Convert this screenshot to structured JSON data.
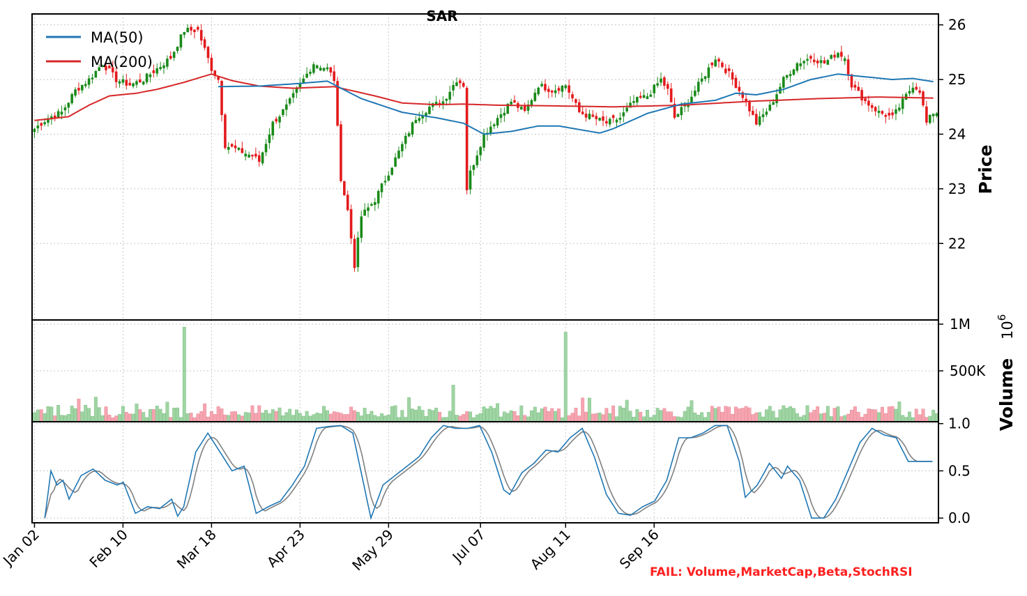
{
  "chart_data": {
    "type": "candlestick",
    "title": "SAR",
    "x_ticks": [
      "Jan 02",
      "Feb 10",
      "Mar 18",
      "Apr 23",
      "May 29",
      "Jul 07",
      "Aug 11",
      "Sep 16"
    ],
    "colors": {
      "up": "#1a8a1a",
      "down": "#e31a1c",
      "ma50": "#1f77b4",
      "ma200": "#d62728",
      "vol_up": "#9fd4a3",
      "vol_down": "#f6a5b0",
      "stoch_k": "#1f77b4",
      "stoch_d": "#808080",
      "fail": "#ff2020"
    },
    "price_panel": {
      "ylabel": "Price",
      "ylim": [
        20.6,
        26.2
      ],
      "yticks": [
        "22",
        "23",
        "24",
        "25",
        "26"
      ],
      "ytick_values": [
        22,
        23,
        24,
        25,
        26
      ],
      "legend": [
        {
          "label": "MA(50)",
          "color": "#1f77b4"
        },
        {
          "label": "MA(200)",
          "color": "#d62728"
        }
      ],
      "legend_position": "top-left",
      "grid": true,
      "close_anchors": [
        [
          0,
          24.1
        ],
        [
          4,
          24.3
        ],
        [
          8,
          24.4
        ],
        [
          12,
          24.8
        ],
        [
          16,
          25.0
        ],
        [
          20,
          25.3
        ],
        [
          24,
          25.0
        ],
        [
          28,
          24.9
        ],
        [
          32,
          25.0
        ],
        [
          36,
          25.2
        ],
        [
          40,
          25.4
        ],
        [
          44,
          25.9
        ],
        [
          48,
          25.9
        ],
        [
          52,
          25.2
        ],
        [
          54,
          25.0
        ],
        [
          56,
          23.8
        ],
        [
          60,
          23.7
        ],
        [
          64,
          23.6
        ],
        [
          66,
          23.5
        ],
        [
          70,
          24.2
        ],
        [
          74,
          24.5
        ],
        [
          78,
          24.9
        ],
        [
          82,
          25.3
        ],
        [
          86,
          25.2
        ],
        [
          88,
          25.0
        ],
        [
          90,
          23.2
        ],
        [
          92,
          22.6
        ],
        [
          94,
          21.6
        ],
        [
          96,
          22.5
        ],
        [
          100,
          22.8
        ],
        [
          104,
          23.3
        ],
        [
          108,
          23.8
        ],
        [
          112,
          24.3
        ],
        [
          116,
          24.5
        ],
        [
          120,
          24.6
        ],
        [
          124,
          25.0
        ],
        [
          126,
          24.9
        ],
        [
          127,
          23.0
        ],
        [
          128,
          23.3
        ],
        [
          132,
          24.0
        ],
        [
          136,
          24.3
        ],
        [
          140,
          24.6
        ],
        [
          144,
          24.4
        ],
        [
          148,
          24.9
        ],
        [
          152,
          24.8
        ],
        [
          156,
          24.9
        ],
        [
          160,
          24.4
        ],
        [
          164,
          24.3
        ],
        [
          168,
          24.2
        ],
        [
          172,
          24.3
        ],
        [
          176,
          24.6
        ],
        [
          180,
          24.7
        ],
        [
          184,
          25.0
        ],
        [
          186,
          24.8
        ],
        [
          188,
          24.3
        ],
        [
          192,
          24.6
        ],
        [
          196,
          25.0
        ],
        [
          200,
          25.4
        ],
        [
          204,
          25.1
        ],
        [
          208,
          24.7
        ],
        [
          212,
          24.2
        ],
        [
          216,
          24.5
        ],
        [
          220,
          25.0
        ],
        [
          224,
          25.3
        ],
        [
          228,
          25.4
        ],
        [
          232,
          25.3
        ],
        [
          234,
          25.4
        ],
        [
          236,
          25.5
        ],
        [
          238,
          25.4
        ],
        [
          240,
          24.9
        ],
        [
          244,
          24.6
        ],
        [
          248,
          24.4
        ],
        [
          252,
          24.3
        ],
        [
          256,
          24.7
        ],
        [
          258,
          24.9
        ],
        [
          260,
          24.8
        ],
        [
          262,
          24.2
        ],
        [
          264,
          24.4
        ]
      ],
      "ma50_anchors": [
        [
          54,
          24.87
        ],
        [
          66,
          24.88
        ],
        [
          76,
          24.92
        ],
        [
          86,
          24.97
        ],
        [
          96,
          24.65
        ],
        [
          108,
          24.4
        ],
        [
          118,
          24.3
        ],
        [
          126,
          24.2
        ],
        [
          132,
          24.0
        ],
        [
          140,
          24.05
        ],
        [
          148,
          24.15
        ],
        [
          154,
          24.15
        ],
        [
          166,
          24.02
        ],
        [
          170,
          24.1
        ],
        [
          180,
          24.38
        ],
        [
          190,
          24.55
        ],
        [
          200,
          24.62
        ],
        [
          206,
          24.75
        ],
        [
          212,
          24.72
        ],
        [
          220,
          24.82
        ],
        [
          228,
          25.0
        ],
        [
          236,
          25.1
        ],
        [
          244,
          25.05
        ],
        [
          252,
          25.0
        ],
        [
          258,
          25.02
        ],
        [
          264,
          24.96
        ]
      ],
      "ma200_anchors": [
        [
          0,
          24.25
        ],
        [
          10,
          24.32
        ],
        [
          16,
          24.53
        ],
        [
          22,
          24.7
        ],
        [
          30,
          24.75
        ],
        [
          36,
          24.82
        ],
        [
          44,
          24.95
        ],
        [
          52,
          25.1
        ],
        [
          58,
          24.98
        ],
        [
          66,
          24.88
        ],
        [
          76,
          24.84
        ],
        [
          88,
          24.87
        ],
        [
          100,
          24.7
        ],
        [
          108,
          24.57
        ],
        [
          118,
          24.54
        ],
        [
          126,
          24.55
        ],
        [
          136,
          24.53
        ],
        [
          150,
          24.52
        ],
        [
          170,
          24.5
        ],
        [
          190,
          24.53
        ],
        [
          210,
          24.6
        ],
        [
          230,
          24.65
        ],
        [
          248,
          24.68
        ],
        [
          264,
          24.66
        ]
      ]
    },
    "volume_panel": {
      "ylabel": "Volume",
      "offset_label": "10^6",
      "ylim": [
        0,
        1.0
      ],
      "yticks": [
        "1M",
        "500K"
      ],
      "ytick_values": [
        1.0,
        0.5
      ],
      "spikes": [
        {
          "index": 44,
          "value": 0.93
        },
        {
          "index": 156,
          "value": 0.88
        },
        {
          "index": 123,
          "value": 0.36
        }
      ]
    },
    "stoch_panel": {
      "ylim": [
        -0.05,
        1.02
      ],
      "yticks": [
        "0.0",
        "0.5",
        "1.0"
      ],
      "ytick_values": [
        0.0,
        0.5,
        1.0
      ],
      "k_anchors": [
        [
          4,
          0.0
        ],
        [
          6,
          0.5
        ],
        [
          8,
          0.35
        ],
        [
          10,
          0.4
        ],
        [
          12,
          0.2
        ],
        [
          16,
          0.45
        ],
        [
          20,
          0.52
        ],
        [
          24,
          0.4
        ],
        [
          28,
          0.35
        ],
        [
          30,
          0.38
        ],
        [
          34,
          0.05
        ],
        [
          38,
          0.12
        ],
        [
          42,
          0.1
        ],
        [
          46,
          0.2
        ],
        [
          48,
          0.02
        ],
        [
          50,
          0.12
        ],
        [
          54,
          0.7
        ],
        [
          58,
          0.9
        ],
        [
          62,
          0.7
        ],
        [
          66,
          0.5
        ],
        [
          70,
          0.55
        ],
        [
          74,
          0.05
        ],
        [
          78,
          0.12
        ],
        [
          82,
          0.18
        ],
        [
          86,
          0.35
        ],
        [
          90,
          0.55
        ],
        [
          94,
          0.95
        ],
        [
          98,
          0.97
        ],
        [
          102,
          0.98
        ],
        [
          106,
          0.9
        ],
        [
          110,
          0.3
        ],
        [
          112,
          0.0
        ],
        [
          116,
          0.35
        ],
        [
          120,
          0.45
        ],
        [
          124,
          0.55
        ],
        [
          128,
          0.65
        ],
        [
          132,
          0.85
        ],
        [
          136,
          0.98
        ],
        [
          140,
          0.95
        ],
        [
          144,
          0.95
        ],
        [
          148,
          0.98
        ],
        [
          152,
          0.7
        ],
        [
          156,
          0.3
        ],
        [
          158,
          0.25
        ],
        [
          162,
          0.48
        ],
        [
          166,
          0.58
        ],
        [
          170,
          0.72
        ],
        [
          174,
          0.7
        ],
        [
          178,
          0.85
        ],
        [
          182,
          0.95
        ],
        [
          186,
          0.65
        ],
        [
          190,
          0.25
        ],
        [
          194,
          0.05
        ],
        [
          198,
          0.03
        ],
        [
          202,
          0.12
        ],
        [
          206,
          0.18
        ],
        [
          210,
          0.4
        ],
        [
          214,
          0.85
        ],
        [
          218,
          0.85
        ],
        [
          222,
          0.9
        ],
        [
          226,
          0.98
        ],
        [
          230,
          0.98
        ],
        [
          234,
          0.6
        ],
        [
          236,
          0.22
        ],
        [
          240,
          0.35
        ],
        [
          244,
          0.58
        ],
        [
          248,
          0.42
        ],
        [
          250,
          0.55
        ],
        [
          254,
          0.4
        ],
        [
          258,
          0.0
        ],
        [
          262,
          0.0
        ],
        [
          266,
          0.2
        ],
        [
          270,
          0.5
        ],
        [
          274,
          0.8
        ],
        [
          278,
          0.95
        ],
        [
          282,
          0.88
        ],
        [
          286,
          0.85
        ],
        [
          290,
          0.6
        ],
        [
          294,
          0.6
        ],
        [
          298,
          0.6
        ]
      ]
    },
    "fail_text": "FAIL: Volume,MarketCap,Beta,StochRSI"
  }
}
